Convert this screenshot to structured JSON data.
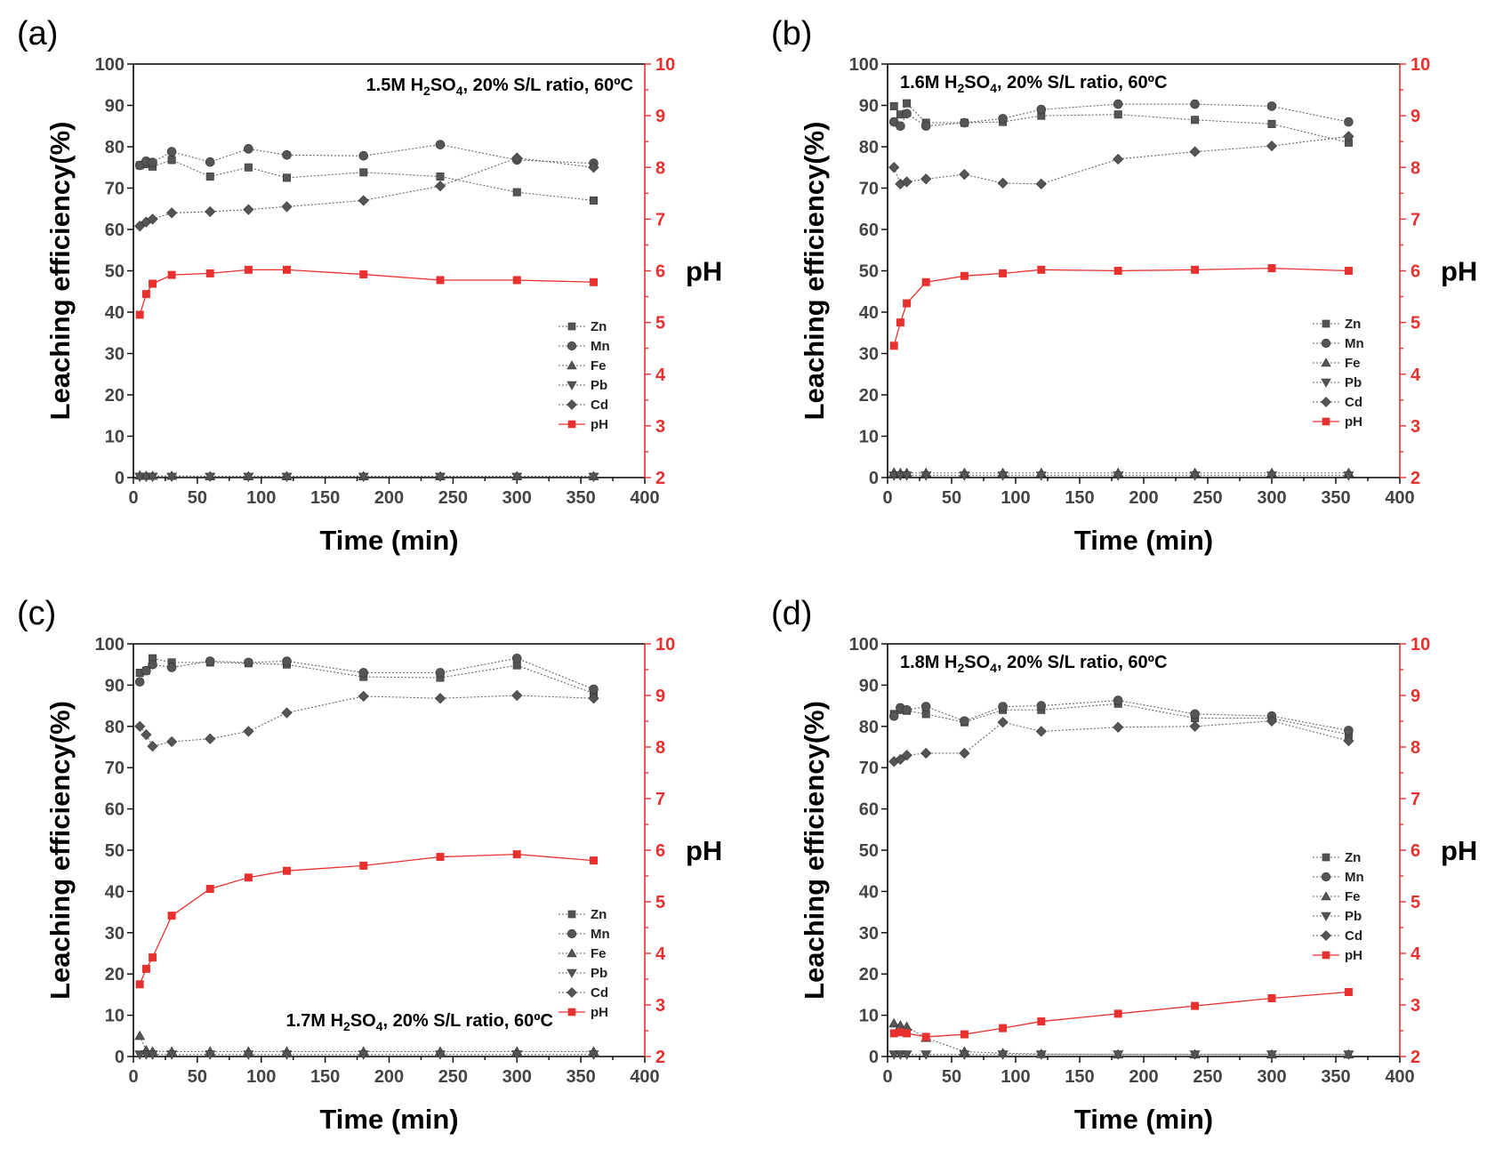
{
  "colors": {
    "metal_marker": "#555555",
    "metal_line": "#666666",
    "ph": "#e8312f",
    "axis": "#000000"
  },
  "legend_labels": [
    "Zn",
    "Mn",
    "Fe",
    "Pb",
    "Cd",
    "pH"
  ],
  "chart_data": [
    {
      "type": "line",
      "panel_label": "(a)",
      "annotation": {
        "molarity": "1.5M H",
        "sub2": "2",
        "so": "SO",
        "sub4": "4",
        "rest": ", 20% S/L ratio, 60ºC"
      },
      "xlabel": "Time (min)",
      "ylabel": "Leaching efficiency(%)",
      "y2label": "pH",
      "xlim": [
        0,
        400
      ],
      "ylim": [
        0,
        100
      ],
      "y2lim": [
        2,
        10
      ],
      "xticks": [
        0,
        50,
        100,
        150,
        200,
        250,
        300,
        350,
        400
      ],
      "yticks": [
        0,
        10,
        20,
        30,
        40,
        50,
        60,
        70,
        80,
        90,
        100
      ],
      "y2ticks": [
        2,
        3,
        4,
        5,
        6,
        7,
        8,
        9,
        10
      ],
      "legend_position": "bottom-right",
      "grid": false,
      "x": [
        5,
        10,
        15,
        30,
        60,
        90,
        120,
        180,
        240,
        300,
        360
      ],
      "series": [
        {
          "name": "Zn",
          "marker": "square",
          "values": [
            75.5,
            75.8,
            75.2,
            76.8,
            72.8,
            75.0,
            72.5,
            73.8,
            72.8,
            69.0,
            67.0
          ]
        },
        {
          "name": "Mn",
          "marker": "circle",
          "values": [
            75.5,
            76.5,
            76.2,
            78.8,
            76.3,
            79.5,
            78.0,
            77.8,
            80.5,
            76.8,
            76.0
          ]
        },
        {
          "name": "Fe",
          "marker": "triangle-up",
          "values": [
            0.5,
            0.4,
            0.4,
            0.4,
            0.3,
            0.3,
            0.3,
            0.3,
            0.3,
            0.3,
            0.3
          ]
        },
        {
          "name": "Pb",
          "marker": "triangle-down",
          "values": [
            0.2,
            0.2,
            0.2,
            0.2,
            0.2,
            0.2,
            0.2,
            0.2,
            0.2,
            0.2,
            0.2
          ]
        },
        {
          "name": "Cd",
          "marker": "diamond",
          "values": [
            60.8,
            61.8,
            62.5,
            64.0,
            64.3,
            64.8,
            65.5,
            67.0,
            70.5,
            77.3,
            75.0
          ]
        },
        {
          "name": "pH",
          "marker": "square",
          "axis": "right",
          "values": [
            5.15,
            5.55,
            5.75,
            5.92,
            5.95,
            6.02,
            6.02,
            5.93,
            5.82,
            5.82,
            5.78
          ]
        }
      ]
    },
    {
      "type": "line",
      "panel_label": "(b)",
      "annotation": {
        "molarity": "1.6M H",
        "sub2": "2",
        "so": "SO",
        "sub4": "4",
        "rest": ", 20% S/L ratio, 60ºC"
      },
      "xlabel": "Time (min)",
      "ylabel": "Leaching efficiency(%)",
      "y2label": "pH",
      "xlim": [
        0,
        400
      ],
      "ylim": [
        0,
        100
      ],
      "y2lim": [
        2,
        10
      ],
      "xticks": [
        0,
        50,
        100,
        150,
        200,
        250,
        300,
        350,
        400
      ],
      "yticks": [
        0,
        10,
        20,
        30,
        40,
        50,
        60,
        70,
        80,
        90,
        100
      ],
      "y2ticks": [
        2,
        3,
        4,
        5,
        6,
        7,
        8,
        9,
        10
      ],
      "legend_position": "bottom-right",
      "grid": false,
      "x": [
        5,
        10,
        15,
        30,
        60,
        90,
        120,
        180,
        240,
        300,
        360
      ],
      "series": [
        {
          "name": "Zn",
          "marker": "square",
          "values": [
            89.8,
            87.8,
            90.5,
            85.8,
            85.8,
            86.0,
            87.5,
            87.8,
            86.5,
            85.5,
            81.0
          ]
        },
        {
          "name": "Mn",
          "marker": "circle",
          "values": [
            86.0,
            85.0,
            88.0,
            85.0,
            85.8,
            86.8,
            89.0,
            90.3,
            90.3,
            89.8,
            86.0
          ]
        },
        {
          "name": "Fe",
          "marker": "triangle-up",
          "values": [
            1.2,
            1.1,
            1.1,
            1.1,
            1.1,
            1.1,
            1.1,
            1.1,
            1.1,
            1.1,
            1.1
          ]
        },
        {
          "name": "Pb",
          "marker": "triangle-down",
          "values": [
            0.5,
            0.5,
            0.5,
            0.5,
            0.5,
            0.5,
            0.5,
            0.5,
            0.5,
            0.5,
            0.5
          ]
        },
        {
          "name": "Cd",
          "marker": "diamond",
          "values": [
            75.0,
            71.0,
            71.5,
            72.2,
            73.3,
            71.2,
            71.0,
            77.0,
            78.8,
            80.2,
            82.5
          ]
        },
        {
          "name": "pH",
          "marker": "square",
          "axis": "right",
          "values": [
            4.55,
            5.0,
            5.37,
            5.78,
            5.9,
            5.95,
            6.02,
            6.0,
            6.02,
            6.05,
            6.0
          ]
        }
      ]
    },
    {
      "type": "line",
      "panel_label": "(c)",
      "annotation": {
        "molarity": "1.7M H",
        "sub2": "2",
        "so": "SO",
        "sub4": "4",
        "rest": ", 20% S/L ratio, 60ºC"
      },
      "xlabel": "Time (min)",
      "ylabel": "Leaching efficiency(%)",
      "y2label": "pH",
      "xlim": [
        0,
        400
      ],
      "ylim": [
        0,
        100
      ],
      "y2lim": [
        2,
        10
      ],
      "xticks": [
        0,
        50,
        100,
        150,
        200,
        250,
        300,
        350,
        400
      ],
      "yticks": [
        0,
        10,
        20,
        30,
        40,
        50,
        60,
        70,
        80,
        90,
        100
      ],
      "y2ticks": [
        2,
        3,
        4,
        5,
        6,
        7,
        8,
        9,
        10
      ],
      "legend_position": "bottom-right",
      "grid": false,
      "x": [
        5,
        10,
        15,
        30,
        60,
        90,
        120,
        180,
        240,
        300,
        360
      ],
      "series": [
        {
          "name": "Zn",
          "marker": "square",
          "values": [
            93.0,
            93.5,
            96.5,
            95.5,
            95.5,
            95.3,
            95.0,
            92.0,
            91.8,
            94.8,
            88.0
          ]
        },
        {
          "name": "Mn",
          "marker": "circle",
          "values": [
            90.8,
            93.5,
            95.0,
            94.3,
            95.8,
            95.5,
            95.8,
            93.0,
            93.0,
            96.5,
            89.0
          ]
        },
        {
          "name": "Fe",
          "marker": "triangle-up",
          "values": [
            5.0,
            1.5,
            1.2,
            1.2,
            1.2,
            1.2,
            1.2,
            1.2,
            1.2,
            1.2,
            1.2
          ]
        },
        {
          "name": "Pb",
          "marker": "triangle-down",
          "values": [
            0.5,
            0.5,
            0.5,
            0.5,
            0.5,
            0.5,
            0.5,
            0.5,
            0.5,
            0.5,
            0.5
          ]
        },
        {
          "name": "Cd",
          "marker": "diamond",
          "values": [
            80.0,
            78.0,
            75.2,
            76.3,
            77.0,
            78.8,
            83.3,
            87.3,
            86.8,
            87.5,
            86.8
          ]
        },
        {
          "name": "pH",
          "marker": "square",
          "axis": "right",
          "values": [
            3.4,
            3.7,
            3.92,
            4.73,
            5.25,
            5.47,
            5.6,
            5.7,
            5.87,
            5.92,
            5.8
          ]
        }
      ]
    },
    {
      "type": "line",
      "panel_label": "(d)",
      "annotation": {
        "molarity": "1.8M H",
        "sub2": "2",
        "so": "SO",
        "sub4": "4",
        "rest": ", 20% S/L ratio, 60ºC"
      },
      "xlabel": "Time (min)",
      "ylabel": "Leaching efficiency(%)",
      "y2label": "pH",
      "xlim": [
        0,
        400
      ],
      "ylim": [
        0,
        100
      ],
      "y2lim": [
        2,
        10
      ],
      "xticks": [
        0,
        50,
        100,
        150,
        200,
        250,
        300,
        350,
        400
      ],
      "yticks": [
        0,
        10,
        20,
        30,
        40,
        50,
        60,
        70,
        80,
        90,
        100
      ],
      "y2ticks": [
        2,
        3,
        4,
        5,
        6,
        7,
        8,
        9,
        10
      ],
      "legend_position": "bottom-right",
      "grid": false,
      "x": [
        5,
        10,
        15,
        30,
        60,
        90,
        120,
        180,
        240,
        300,
        360
      ],
      "series": [
        {
          "name": "Zn",
          "marker": "square",
          "values": [
            83.0,
            84.0,
            83.8,
            83.0,
            81.0,
            84.0,
            84.0,
            85.5,
            82.0,
            82.0,
            78.0
          ]
        },
        {
          "name": "Mn",
          "marker": "circle",
          "values": [
            82.5,
            84.5,
            84.0,
            84.8,
            81.3,
            84.8,
            85.0,
            86.3,
            83.0,
            82.5,
            79.0
          ]
        },
        {
          "name": "Fe",
          "marker": "triangle-up",
          "values": [
            8.0,
            7.5,
            7.2,
            4.5,
            1.2,
            0.8,
            0.6,
            0.5,
            0.5,
            0.5,
            0.5
          ]
        },
        {
          "name": "Pb",
          "marker": "triangle-down",
          "values": [
            0.5,
            0.5,
            0.5,
            0.5,
            0.5,
            0.5,
            0.5,
            0.5,
            0.5,
            0.5,
            0.5
          ]
        },
        {
          "name": "Cd",
          "marker": "diamond",
          "values": [
            71.5,
            72.0,
            73.0,
            73.5,
            73.5,
            81.0,
            78.8,
            79.8,
            80.0,
            81.3,
            76.5
          ]
        },
        {
          "name": "pH",
          "marker": "square",
          "axis": "right",
          "values": [
            2.45,
            2.47,
            2.45,
            2.38,
            2.43,
            2.55,
            2.68,
            2.83,
            2.98,
            3.13,
            3.25
          ]
        }
      ]
    }
  ]
}
